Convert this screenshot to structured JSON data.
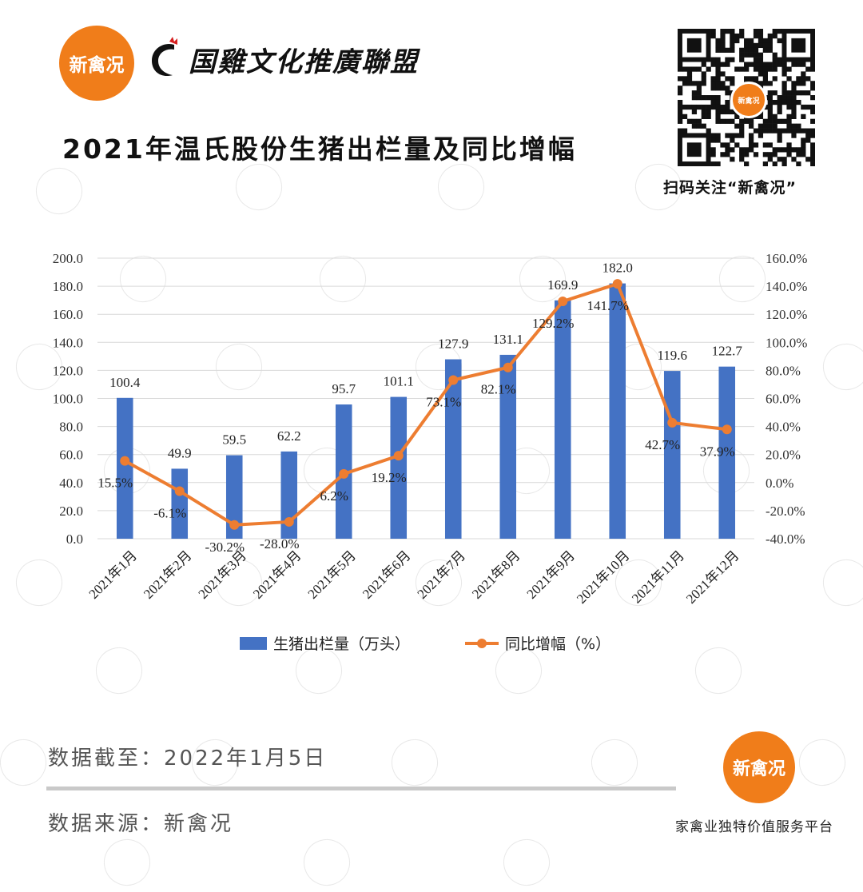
{
  "header": {
    "logo_text": "新禽况",
    "alliance_name": "国雞文化推廣聯盟",
    "title": "2021年温氏股份生猪出栏量及同比增幅",
    "qr_caption": "扫码关注“新禽况”"
  },
  "colors": {
    "bar": "#4472c4",
    "line": "#ed7d31",
    "brand_orange": "#f07d1a"
  },
  "chart_data": {
    "type": "bar",
    "categories": [
      "2021年1月",
      "2021年2月",
      "2021年3月",
      "2021年4月",
      "2021年5月",
      "2021年6月",
      "2021年7月",
      "2021年8月",
      "2021年9月",
      "2021年10月",
      "2021年11月",
      "2021年12月"
    ],
    "series": [
      {
        "name": "生猪出栏量（万头）",
        "type": "bar",
        "axis": "left",
        "values": [
          100.4,
          49.9,
          59.5,
          62.2,
          95.7,
          101.1,
          127.9,
          131.1,
          169.9,
          182.0,
          119.6,
          122.7
        ],
        "labels": [
          "100.4",
          "49.9",
          "59.5",
          "62.2",
          "95.7",
          "101.1",
          "127.9",
          "131.1",
          "169.9",
          "182.0",
          "119.6",
          "122.7"
        ]
      },
      {
        "name": "同比增幅（%）",
        "type": "line",
        "axis": "right",
        "values": [
          15.5,
          -6.1,
          -30.2,
          -28.0,
          6.2,
          19.2,
          73.1,
          82.1,
          129.2,
          141.7,
          42.7,
          37.9
        ],
        "labels": [
          "15.5%",
          "-6.1%",
          "-30.2%",
          "-28.0%",
          "6.2%",
          "19.2%",
          "73.1%",
          "82.1%",
          "129.2%",
          "141.7%",
          "42.7%",
          "37.9%"
        ]
      }
    ],
    "y_left": {
      "min": 0,
      "max": 200,
      "step": 20,
      "ticks": [
        "0.0",
        "20.0",
        "40.0",
        "60.0",
        "80.0",
        "100.0",
        "120.0",
        "140.0",
        "160.0",
        "180.0",
        "200.0"
      ]
    },
    "y_right": {
      "min": -40,
      "max": 160,
      "step": 20,
      "ticks": [
        "-40.0%",
        "-20.0%",
        "0.0%",
        "20.0%",
        "40.0%",
        "60.0%",
        "80.0%",
        "100.0%",
        "120.0%",
        "140.0%",
        "160.0%"
      ]
    },
    "grid": true,
    "legend_position": "bottom"
  },
  "footer": {
    "data_date": "数据截至：2022年1月5日",
    "data_source": "数据来源：新禽况",
    "logo_text": "新禽况",
    "platform": "家禽业独特价值服务平台"
  }
}
